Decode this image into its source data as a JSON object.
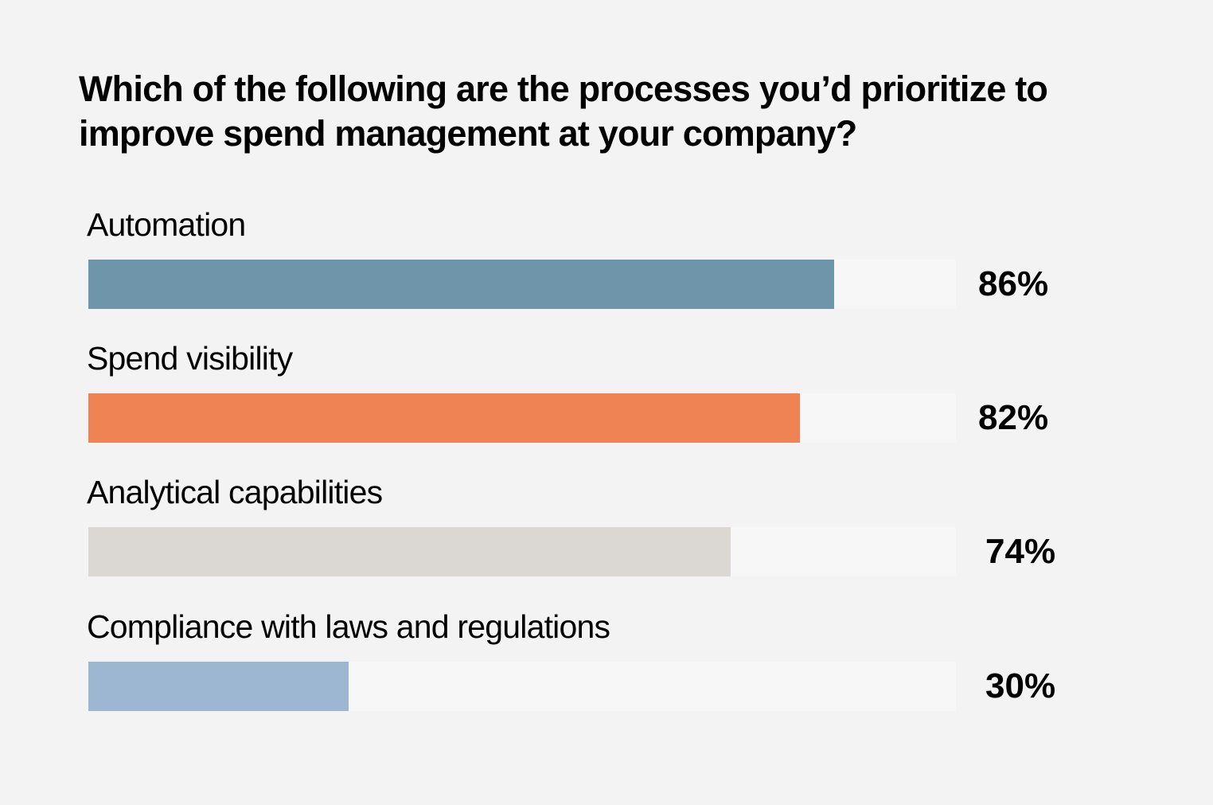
{
  "chart_data": {
    "type": "bar",
    "orientation": "horizontal",
    "title": "Which of the following are the processes you’d prioritize to improve spend management at your company?",
    "categories": [
      "Automation",
      "Spend visibility",
      "Analytical capabilities",
      "Compliance with laws and regulations"
    ],
    "values": [
      86,
      82,
      74,
      30
    ],
    "value_labels": [
      "86%",
      "82%",
      "74%",
      "30%"
    ],
    "colors": [
      "#6f95aa",
      "#ef8354",
      "#dbd7d3",
      "#9db7d2"
    ],
    "track_color": "#f7f7f7",
    "background": "#f3f3f3",
    "xlim": [
      0,
      100
    ],
    "grid": false,
    "legend": "none"
  }
}
